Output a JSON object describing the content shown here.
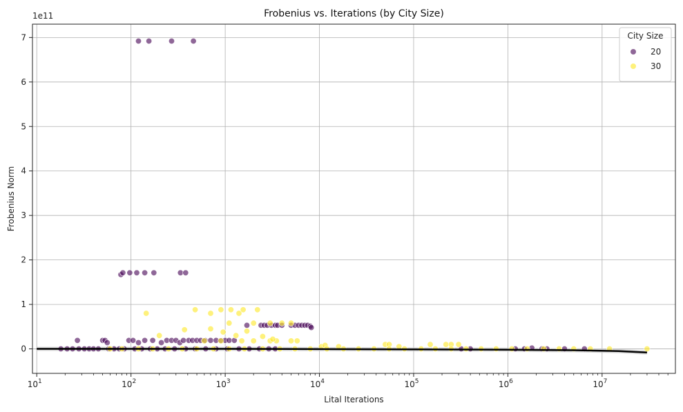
{
  "chart_data": {
    "type": "scatter",
    "title": "Frobenius vs. Iterations (by City Size)",
    "xlabel": "Lital Iterations",
    "ylabel": "Frobenius Norm",
    "x_scale": "log",
    "xlim": [
      9,
      60000000
    ],
    "ylim": [
      -0.55,
      7.3
    ],
    "y_multiplier_label": "1e11",
    "x_ticks": [
      {
        "value": 10,
        "base": "10",
        "exp": "1"
      },
      {
        "value": 100,
        "base": "10",
        "exp": "2"
      },
      {
        "value": 1000,
        "base": "10",
        "exp": "3"
      },
      {
        "value": 10000,
        "base": "10",
        "exp": "4"
      },
      {
        "value": 100000,
        "base": "10",
        "exp": "5"
      },
      {
        "value": 1000000,
        "base": "10",
        "exp": "6"
      },
      {
        "value": 10000000,
        "base": "10",
        "exp": "7"
      }
    ],
    "y_ticks": [
      {
        "value": 0,
        "label": "0"
      },
      {
        "value": 1,
        "label": "1"
      },
      {
        "value": 2,
        "label": "2"
      },
      {
        "value": 3,
        "label": "3"
      },
      {
        "value": 4,
        "label": "4"
      },
      {
        "value": 5,
        "label": "5"
      },
      {
        "value": 6,
        "label": "6"
      },
      {
        "value": 7,
        "label": "7"
      }
    ],
    "grid": true,
    "legend": {
      "title": "City Size",
      "position": "top-right"
    },
    "series": [
      {
        "name": "20",
        "color": "#440154",
        "opacity": 0.6,
        "points": [
          [
            120,
            6.92
          ],
          [
            155,
            6.92
          ],
          [
            270,
            6.92
          ],
          [
            460,
            6.92
          ],
          [
            78,
            1.67
          ],
          [
            82,
            1.71
          ],
          [
            97,
            1.71
          ],
          [
            115,
            1.71
          ],
          [
            140,
            1.71
          ],
          [
            175,
            1.71
          ],
          [
            335,
            1.71
          ],
          [
            380,
            1.71
          ],
          [
            27,
            0.19
          ],
          [
            50,
            0.19
          ],
          [
            53,
            0.19
          ],
          [
            56,
            0.14
          ],
          [
            95,
            0.19
          ],
          [
            105,
            0.19
          ],
          [
            120,
            0.14
          ],
          [
            140,
            0.19
          ],
          [
            170,
            0.19
          ],
          [
            210,
            0.14
          ],
          [
            240,
            0.19
          ],
          [
            270,
            0.19
          ],
          [
            300,
            0.19
          ],
          [
            330,
            0.14
          ],
          [
            360,
            0.19
          ],
          [
            410,
            0.19
          ],
          [
            450,
            0.19
          ],
          [
            500,
            0.19
          ],
          [
            550,
            0.19
          ],
          [
            610,
            0.19
          ],
          [
            700,
            0.19
          ],
          [
            800,
            0.19
          ],
          [
            900,
            0.19
          ],
          [
            1000,
            0.19
          ],
          [
            1100,
            0.19
          ],
          [
            1250,
            0.19
          ],
          [
            1700,
            0.53
          ],
          [
            2400,
            0.53
          ],
          [
            2600,
            0.53
          ],
          [
            2800,
            0.53
          ],
          [
            3100,
            0.53
          ],
          [
            3400,
            0.53
          ],
          [
            3600,
            0.53
          ],
          [
            4000,
            0.53
          ],
          [
            5000,
            0.53
          ],
          [
            5500,
            0.53
          ],
          [
            6000,
            0.53
          ],
          [
            6500,
            0.53
          ],
          [
            7000,
            0.53
          ],
          [
            7500,
            0.53
          ],
          [
            8000,
            0.51
          ],
          [
            8200,
            0.48
          ],
          [
            18,
            0.0
          ],
          [
            21,
            0.0
          ],
          [
            24,
            0.0
          ],
          [
            28,
            0.0
          ],
          [
            32,
            0.0
          ],
          [
            36,
            0.0
          ],
          [
            40,
            0.0
          ],
          [
            45,
            0.0
          ],
          [
            58,
            0.0
          ],
          [
            66,
            0.0
          ],
          [
            75,
            0.0
          ],
          [
            85,
            0.0
          ],
          [
            110,
            0.0
          ],
          [
            130,
            0.0
          ],
          [
            160,
            0.0
          ],
          [
            190,
            0.0
          ],
          [
            230,
            0.0
          ],
          [
            290,
            0.0
          ],
          [
            380,
            0.0
          ],
          [
            480,
            0.0
          ],
          [
            620,
            0.0
          ],
          [
            800,
            0.0
          ],
          [
            1050,
            0.0
          ],
          [
            1400,
            0.0
          ],
          [
            1800,
            0.0
          ],
          [
            2300,
            0.0
          ],
          [
            2900,
            0.0
          ],
          [
            3400,
            0.0
          ],
          [
            320000,
            0.0
          ],
          [
            400000,
            0.0
          ],
          [
            1200000,
            0.0
          ],
          [
            1500000,
            0.0
          ],
          [
            1800000,
            0.02
          ],
          [
            2300000,
            0.0
          ],
          [
            2600000,
            0.0
          ],
          [
            4000000,
            0.0
          ],
          [
            6500000,
            0.0
          ]
        ]
      },
      {
        "name": "30",
        "color": "#fde725",
        "opacity": 0.6,
        "points": [
          [
            145,
            0.8
          ],
          [
            200,
            0.3
          ],
          [
            370,
            0.43
          ],
          [
            480,
            0.88
          ],
          [
            700,
            0.8
          ],
          [
            900,
            0.88
          ],
          [
            1150,
            0.88
          ],
          [
            1400,
            0.8
          ],
          [
            1550,
            0.88
          ],
          [
            2200,
            0.88
          ],
          [
            1100,
            0.58
          ],
          [
            2000,
            0.58
          ],
          [
            3000,
            0.58
          ],
          [
            4000,
            0.58
          ],
          [
            5000,
            0.58
          ],
          [
            600,
            0.18
          ],
          [
            900,
            0.18
          ],
          [
            1500,
            0.18
          ],
          [
            2000,
            0.18
          ],
          [
            3000,
            0.18
          ],
          [
            3500,
            0.18
          ],
          [
            5000,
            0.18
          ],
          [
            5800,
            0.18
          ],
          [
            700,
            0.45
          ],
          [
            950,
            0.38
          ],
          [
            1300,
            0.3
          ],
          [
            1700,
            0.4
          ],
          [
            2500,
            0.28
          ],
          [
            3200,
            0.22
          ],
          [
            10500,
            0.05
          ],
          [
            11500,
            0.08
          ],
          [
            16000,
            0.05
          ],
          [
            50000,
            0.1
          ],
          [
            55000,
            0.1
          ],
          [
            70000,
            0.05
          ],
          [
            150000,
            0.1
          ],
          [
            220000,
            0.1
          ],
          [
            250000,
            0.1
          ],
          [
            300000,
            0.1
          ],
          [
            60,
            0.0
          ],
          [
            80,
            0.0
          ],
          [
            120,
            0.0
          ],
          [
            170,
            0.0
          ],
          [
            250,
            0.0
          ],
          [
            350,
            0.0
          ],
          [
            500,
            0.0
          ],
          [
            750,
            0.0
          ],
          [
            1100,
            0.0
          ],
          [
            1600,
            0.0
          ],
          [
            2500,
            0.0
          ],
          [
            3800,
            0.0
          ],
          [
            5500,
            0.0
          ],
          [
            8000,
            0.0
          ],
          [
            12000,
            0.0
          ],
          [
            18000,
            0.0
          ],
          [
            26000,
            0.0
          ],
          [
            38000,
            0.0
          ],
          [
            55000,
            0.0
          ],
          [
            80000,
            0.0
          ],
          [
            120000,
            0.0
          ],
          [
            170000,
            0.0
          ],
          [
            250000,
            0.0
          ],
          [
            360000,
            0.0
          ],
          [
            520000,
            0.0
          ],
          [
            750000,
            0.0
          ],
          [
            1100000,
            0.0
          ],
          [
            1600000,
            0.0
          ],
          [
            2400000,
            0.0
          ],
          [
            3500000,
            0.0
          ],
          [
            5000000,
            0.0
          ],
          [
            7500000,
            0.0
          ],
          [
            12000000,
            0.0
          ],
          [
            30000000,
            0.0
          ]
        ]
      }
    ],
    "trend_line": {
      "color": "#000000",
      "points": [
        [
          10,
          0.0
        ],
        [
          1000,
          0.0
        ],
        [
          100000,
          -0.01
        ],
        [
          1000000,
          -0.02
        ],
        [
          5000000,
          -0.03
        ],
        [
          15000000,
          -0.05
        ],
        [
          30000000,
          -0.08
        ]
      ]
    }
  }
}
